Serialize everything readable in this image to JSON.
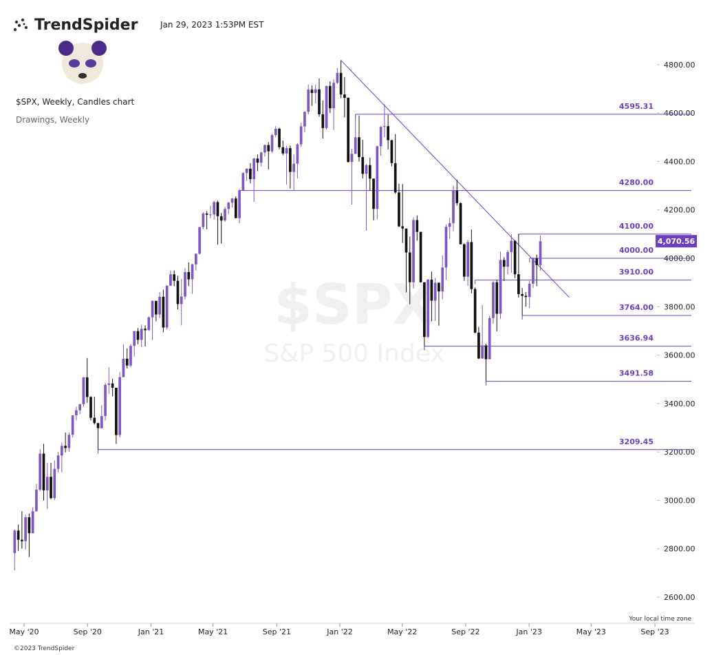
{
  "header": {
    "brand": "TrendSpider",
    "timestamp": "Jan 29, 2023 1:53PM EST",
    "chart_name": "$SPX, Weekly, Candles chart",
    "drawings": "Drawings, Weekly"
  },
  "footer": {
    "timezone": "Your local time zone",
    "copyright": "©2023 TrendSpider"
  },
  "chart_data": {
    "type": "candlestick",
    "watermark": "$SPX",
    "subtitle": "S&P 500 Index",
    "open": [
      2782,
      2875,
      2837,
      2831,
      2930,
      2864,
      2955,
      3044,
      3193,
      3041,
      3097,
      3009,
      3130,
      3185,
      3225,
      3216,
      3271,
      3351,
      3372,
      3397,
      3508,
      3427,
      3341,
      3319,
      3298,
      3348,
      3477,
      3483,
      3465,
      3270,
      3509,
      3585,
      3557,
      3638,
      3699,
      3663,
      3709,
      3703,
      3756,
      3824,
      3768,
      3841,
      3714,
      3887,
      3934,
      3907,
      3811,
      3842,
      3943,
      3913,
      3975,
      4019,
      4129,
      4185,
      4180,
      4181,
      4232,
      4174,
      4156,
      4204,
      4230,
      4247,
      4166,
      4281,
      4352,
      4370,
      4327,
      4412,
      4395,
      4437,
      4468,
      4442,
      4509,
      4535,
      4459,
      4433,
      4455,
      4357,
      4391,
      4471,
      4545,
      4605,
      4697,
      4683,
      4698,
      4595,
      4538,
      4712,
      4620,
      4725,
      4766,
      4677,
      4663,
      4398,
      4432,
      4500,
      4418,
      4349,
      4385,
      4329,
      4204,
      4463,
      4543,
      4546,
      4488,
      4393,
      4272,
      4132,
      4123,
      4024,
      3901,
      4158,
      4109,
      3901,
      3675,
      3912,
      3825,
      3899,
      3863,
      3962,
      4130,
      4145,
      4280,
      4228,
      4058,
      3924,
      4067,
      3873,
      3693,
      3586,
      3640,
      3583,
      3753,
      3901,
      3771,
      3993,
      3965,
      4026,
      4072,
      3934,
      3852,
      3845,
      3840,
      3895,
      3999,
      3972
    ],
    "high": [
      2880,
      2900,
      2955,
      2940,
      2945,
      2971,
      3068,
      3211,
      3233,
      3155,
      3155,
      3165,
      3200,
      3238,
      3280,
      3280,
      3352,
      3387,
      3399,
      3509,
      3588,
      3430,
      3428,
      3320,
      3393,
      3485,
      3550,
      3502,
      3465,
      3530,
      3645,
      3628,
      3645,
      3700,
      3712,
      3726,
      3723,
      3760,
      3826,
      3823,
      3860,
      3870,
      3887,
      3950,
      3950,
      3928,
      3915,
      3960,
      3983,
      3978,
      4020,
      4129,
      4191,
      4195,
      4218,
      4238,
      4238,
      4188,
      4213,
      4234,
      4249,
      4256,
      4286,
      4356,
      4372,
      4393,
      4415,
      4429,
      4441,
      4470,
      4480,
      4513,
      4546,
      4540,
      4486,
      4465,
      4466,
      4429,
      4476,
      4560,
      4608,
      4718,
      4714,
      4718,
      4743,
      4652,
      4713,
      4731,
      4740,
      4786,
      4818,
      4749,
      4665,
      4453,
      4595.31,
      4590,
      4490,
      4390,
      4416,
      4330,
      4465,
      4546,
      4637,
      4593,
      4490,
      4513,
      4308,
      4307,
      4123,
      4090,
      4169,
      4177,
      4110,
      3901,
      3914,
      3945,
      3919,
      3900,
      4012,
      4140,
      4167,
      4300,
      4325,
      4230,
      4062,
      4076,
      4119,
      3880,
      3717,
      3807,
      3647,
      3763,
      3905,
      3911,
      4028,
      4005,
      4034,
      4100,
      4075,
      4101,
      3877,
      3860,
      3907,
      4003,
      4015,
      4094
    ],
    "low": [
      2710,
      2790,
      2800,
      2797,
      2766,
      2865,
      2953,
      3038,
      2999,
      2965,
      3004,
      3001,
      3115,
      3115,
      3198,
      3200,
      3260,
      3330,
      3356,
      3387,
      3403,
      3330,
      3313,
      3209.45,
      3297,
      3330,
      3440,
      3430,
      3233,
      3260,
      3512,
      3545,
      3550,
      3594,
      3645,
      3633,
      3636,
      3700,
      3662,
      3740,
      3753,
      3694,
      3705,
      3885,
      3885,
      3789,
      3723,
      3830,
      3885,
      3853,
      3950,
      4015,
      4120,
      4120,
      4165,
      4160,
      4056,
      4061,
      4150,
      4183,
      4210,
      4165,
      4145,
      4278,
      4320,
      4310,
      4233,
      4360,
      4380,
      4420,
      4367,
      4435,
      4500,
      4450,
      4426,
      4305,
      4288,
      4278,
      4330,
      4460,
      4520,
      4595,
      4630,
      4640,
      4585,
      4495,
      4532,
      4600,
      4530,
      4720,
      4662,
      4582,
      4395,
      4222,
      4430,
      4400,
      4330,
      4114,
      4279,
      4157,
      4161,
      4424,
      4500,
      4450,
      4380,
      4267,
      4129,
      4063,
      3859,
      3810,
      3875,
      4073,
      3900,
      3636.94,
      3670,
      3740,
      3742,
      3722,
      3830,
      3911,
      4080,
      4112,
      4218,
      4057,
      3907,
      3886,
      3855,
      3690,
      3584,
      3585,
      3491.58,
      3591,
      3730,
      3698,
      3750,
      3906,
      3933,
      3940,
      3918,
      3838,
      3764,
      3800,
      3794,
      3877,
      3885,
      3949
    ],
    "close": [
      2875,
      2837,
      2831,
      2930,
      2864,
      2955,
      3044,
      3193,
      3041,
      3097,
      3009,
      3130,
      3185,
      3225,
      3216,
      3271,
      3351,
      3372,
      3397,
      3508,
      3427,
      3341,
      3319,
      3298,
      3348,
      3477,
      3483,
      3465,
      3270,
      3509,
      3585,
      3557,
      3638,
      3699,
      3663,
      3709,
      3703,
      3756,
      3824,
      3768,
      3841,
      3714,
      3887,
      3934,
      3907,
      3811,
      3842,
      3943,
      3913,
      3975,
      4019,
      4129,
      4185,
      4180,
      4181,
      4232,
      4174,
      4156,
      4204,
      4230,
      4247,
      4166,
      4281,
      4352,
      4370,
      4327,
      4412,
      4395,
      4437,
      4468,
      4442,
      4509,
      4535,
      4459,
      4433,
      4455,
      4357,
      4391,
      4471,
      4545,
      4605,
      4697,
      4683,
      4698,
      4595,
      4538,
      4712,
      4620,
      4725,
      4766,
      4677,
      4663,
      4398,
      4432,
      4500,
      4418,
      4349,
      4385,
      4329,
      4204,
      4463,
      4543,
      4546,
      4488,
      4393,
      4272,
      4132,
      4123,
      4024,
      3901,
      4158,
      4109,
      3901,
      3675,
      3912,
      3825,
      3899,
      3863,
      3962,
      4130,
      4145,
      4280,
      4228,
      4058,
      3924,
      4067,
      3873,
      3693,
      3586,
      3640,
      3583,
      3753,
      3901,
      3771,
      3993,
      3965,
      4026,
      4072,
      3934,
      3852,
      3845,
      3840,
      3895,
      3999,
      3972,
      4070.56
    ],
    "up_color": "#7e57c2",
    "down_color": "#111111",
    "line_color": "#6b3fbf",
    "xlim": [
      -1.2,
      187.6
    ],
    "xticks": [
      {
        "value": 2.6,
        "label": "May '20"
      },
      {
        "value": 20.1,
        "label": "Sep '20"
      },
      {
        "value": 37.6,
        "label": "Jan '21"
      },
      {
        "value": 54.7,
        "label": "May '21"
      },
      {
        "value": 72.3,
        "label": "Sep '21"
      },
      {
        "value": 89.7,
        "label": "Jan '22"
      },
      {
        "value": 106.9,
        "label": "May '22"
      },
      {
        "value": 124.4,
        "label": "Sep '22"
      },
      {
        "value": 141.9,
        "label": "Jan '23"
      },
      {
        "value": 159,
        "label": "May '23"
      },
      {
        "value": 176.6,
        "label": "Sep '23"
      }
    ],
    "ylim": [
      2506,
      4868
    ],
    "yticks": [
      {
        "value": 2600,
        "label": "2600.00"
      },
      {
        "value": 2800,
        "label": "2800.00"
      },
      {
        "value": 3000,
        "label": "3000.00"
      },
      {
        "value": 3200,
        "label": "3200.00"
      },
      {
        "value": 3400,
        "label": "3400.00"
      },
      {
        "value": 3600,
        "label": "3600.00"
      },
      {
        "value": 3800,
        "label": "3800.00"
      },
      {
        "value": 4000,
        "label": "4000.00"
      },
      {
        "value": 4200,
        "label": "4200.00"
      },
      {
        "value": 4400,
        "label": "4400.00"
      },
      {
        "value": 4600,
        "label": "4600.00"
      },
      {
        "value": 4800,
        "label": "4800.00"
      }
    ],
    "last_price": {
      "value": 4070.56,
      "label": "4,070.56"
    },
    "levels": [
      {
        "value": 4595.31,
        "label": "4595.31",
        "start": 94
      },
      {
        "value": 4280,
        "label": "4280.00",
        "start": 62
      },
      {
        "value": 4100,
        "label": "4100.00",
        "start": 139
      },
      {
        "value": 4000,
        "label": "4000.00",
        "start": 142
      },
      {
        "value": 3910,
        "label": "3910.00",
        "start": 127
      },
      {
        "value": 3764,
        "label": "3764.00",
        "start": 140
      },
      {
        "value": 3636.94,
        "label": "3636.94",
        "start": 113
      },
      {
        "value": 3491.58,
        "label": "3491.58",
        "start": 130
      },
      {
        "value": 3209.45,
        "label": "3209.45",
        "start": 23
      }
    ],
    "trendline": {
      "x": [
        90,
        153
      ],
      "y": [
        4818,
        3838
      ]
    }
  }
}
